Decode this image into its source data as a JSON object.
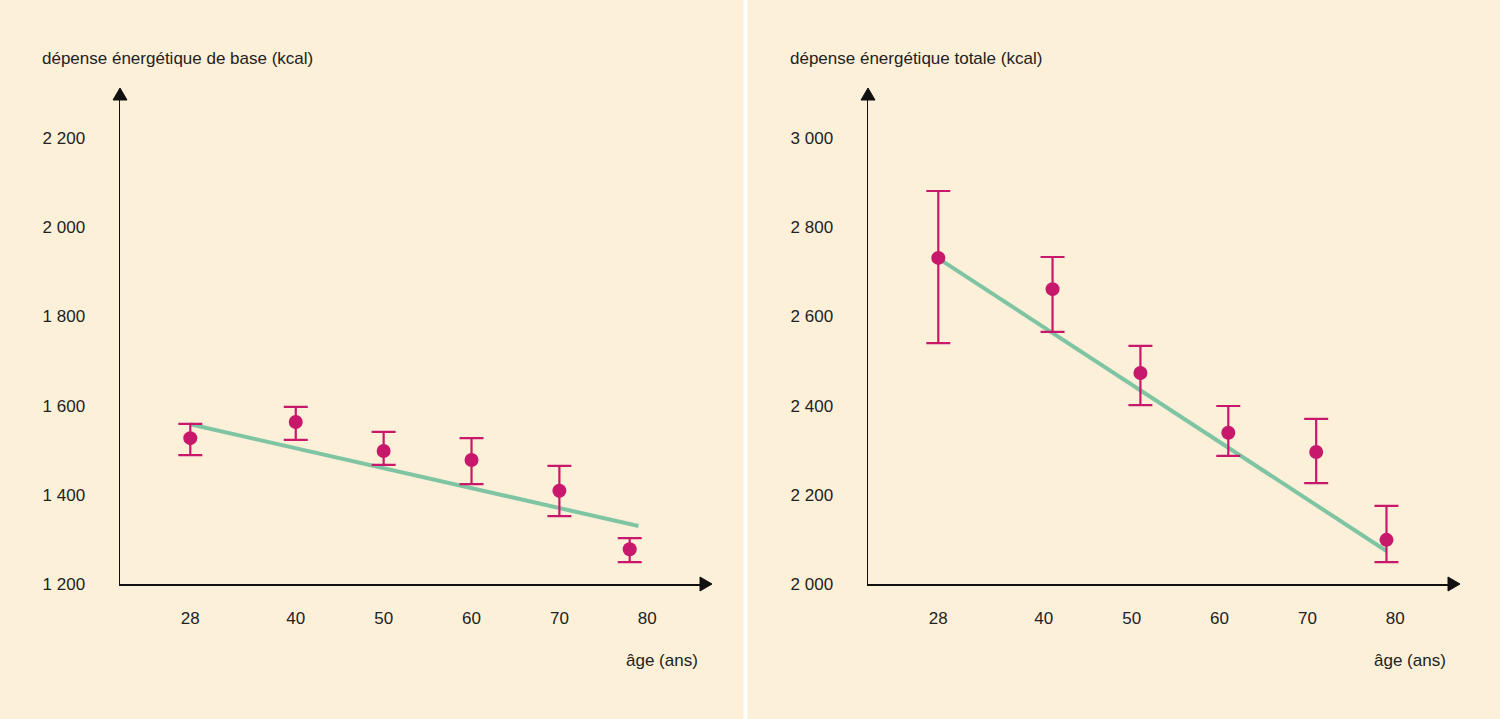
{
  "chart_data": [
    {
      "type": "scatter",
      "y_label": "dépense énergétique de base (kcal)",
      "x_label": "âge (ans)",
      "xlim": [
        20,
        86
      ],
      "xticks": [
        28,
        40,
        50,
        60,
        70,
        80
      ],
      "ylim": [
        1200,
        2285
      ],
      "yticks": [
        {
          "value": 1200,
          "label": "1 200"
        },
        {
          "value": 1400,
          "label": "1 400"
        },
        {
          "value": 1600,
          "label": "1 600"
        },
        {
          "value": 1800,
          "label": "1 800"
        },
        {
          "value": 2000,
          "label": "2 000"
        },
        {
          "value": 2200,
          "label": "2 200"
        }
      ],
      "grid": false,
      "series": [
        {
          "type": "scatter",
          "marker": "circle",
          "color": "#c8186b",
          "x": [
            28,
            40,
            50,
            60,
            70,
            78
          ],
          "values": [
            1527,
            1563,
            1498,
            1478,
            1409,
            1278
          ],
          "error_plus": [
            32,
            34,
            43,
            49,
            56,
            25
          ],
          "error_minus": [
            38,
            40,
            31,
            54,
            57,
            29
          ]
        },
        {
          "type": "line",
          "line_style": "solid",
          "color": "#7fc5a3",
          "x": [
            28,
            79
          ],
          "values": [
            1558,
            1330
          ]
        }
      ]
    },
    {
      "type": "scatter",
      "y_label": "dépense énergétique totale (kcal)",
      "x_label": "âge (ans)",
      "xlim": [
        20,
        86
      ],
      "xticks": [
        28,
        40,
        50,
        60,
        70,
        80
      ],
      "ylim": [
        2000,
        3085
      ],
      "yticks": [
        {
          "value": 2000,
          "label": "2 000"
        },
        {
          "value": 2200,
          "label": "2 200"
        },
        {
          "value": 2400,
          "label": "2 400"
        },
        {
          "value": 2600,
          "label": "2 600"
        },
        {
          "value": 2800,
          "label": "2 800"
        },
        {
          "value": 3000,
          "label": "3 000"
        }
      ],
      "grid": false,
      "series": [
        {
          "type": "scatter",
          "marker": "circle",
          "color": "#c8186b",
          "x": [
            28,
            41,
            51,
            61,
            71,
            79
          ],
          "values": [
            2731,
            2661,
            2473,
            2339,
            2296,
            2099
          ],
          "error_plus": [
            150,
            72,
            61,
            60,
            74,
            76
          ],
          "error_minus": [
            191,
            96,
            72,
            52,
            70,
            50
          ]
        },
        {
          "type": "line",
          "line_style": "solid",
          "color": "#7fc5a3",
          "x": [
            28,
            79
          ],
          "values": [
            2730,
            2074
          ]
        }
      ]
    }
  ]
}
